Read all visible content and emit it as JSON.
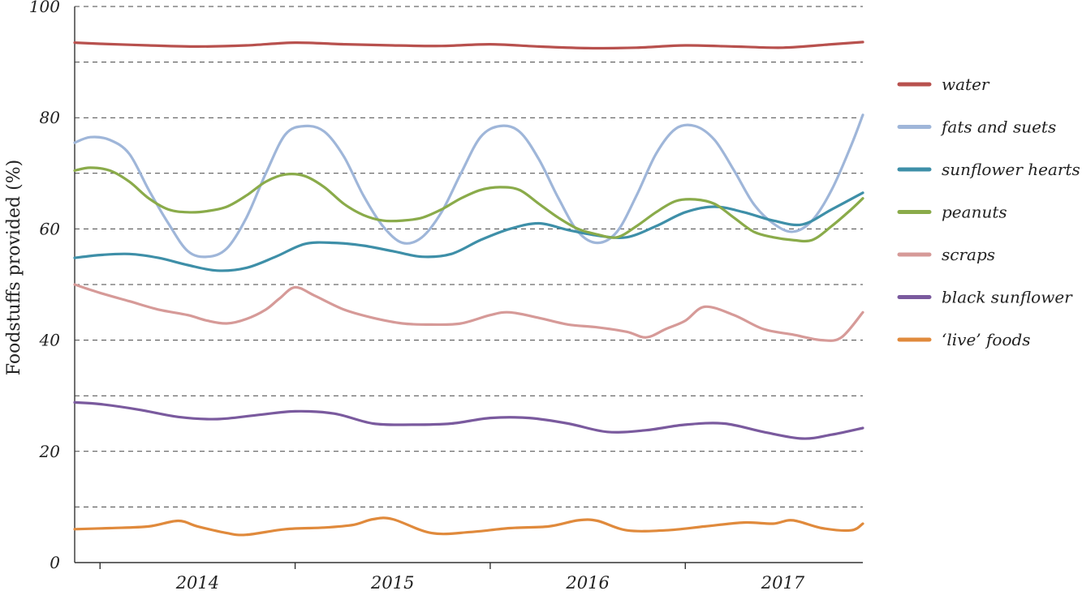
{
  "chart_data": {
    "type": "line",
    "ylabel": "Foodstuffs provided (%)",
    "xlabel": "",
    "ylim": [
      0,
      100
    ],
    "xlim": [
      2013.37,
      2017.41
    ],
    "y_ticks": [
      0,
      20,
      40,
      60,
      80,
      100
    ],
    "y_gridlines": [
      10,
      20,
      30,
      40,
      50,
      60,
      70,
      80,
      90,
      100
    ],
    "x_ticks": [
      {
        "label": "2014",
        "value": 2014.0
      },
      {
        "label": "2015",
        "value": 2015.0
      },
      {
        "label": "2016",
        "value": 2016.0
      },
      {
        "label": "2017",
        "value": 2017.0
      }
    ],
    "x_year_boundaries": [
      2013.5,
      2014.5,
      2015.5,
      2016.5,
      2017.5
    ],
    "grid": true,
    "legend_position": "right",
    "series": [
      {
        "name": "water",
        "color": "#b8514e",
        "x": [
          2013.37,
          2013.5,
          2013.75,
          2014.0,
          2014.25,
          2014.5,
          2014.75,
          2015.0,
          2015.25,
          2015.5,
          2015.75,
          2016.0,
          2016.25,
          2016.5,
          2016.75,
          2017.0,
          2017.25,
          2017.41
        ],
        "y": [
          93.5,
          93.3,
          93.0,
          92.8,
          93.0,
          93.5,
          93.2,
          93.0,
          92.9,
          93.2,
          92.8,
          92.5,
          92.6,
          93.0,
          92.8,
          92.6,
          93.2,
          93.6
        ]
      },
      {
        "name": "fats and suets",
        "color": "#9fb6d9",
        "x": [
          2013.37,
          2013.45,
          2013.55,
          2013.65,
          2013.75,
          2013.85,
          2013.95,
          2014.05,
          2014.15,
          2014.25,
          2014.35,
          2014.45,
          2014.55,
          2014.65,
          2014.75,
          2014.85,
          2014.95,
          2015.05,
          2015.15,
          2015.25,
          2015.35,
          2015.45,
          2015.55,
          2015.65,
          2015.75,
          2015.85,
          2015.95,
          2016.05,
          2016.15,
          2016.25,
          2016.35,
          2016.45,
          2016.55,
          2016.65,
          2016.75,
          2016.85,
          2016.95,
          2017.05,
          2017.15,
          2017.25,
          2017.35,
          2017.41
        ],
        "y": [
          75.5,
          76.5,
          76.0,
          73.5,
          67.0,
          61.0,
          56.0,
          55.0,
          56.5,
          62.0,
          70.0,
          77.0,
          78.5,
          77.5,
          73.0,
          66.0,
          60.5,
          57.5,
          58.5,
          63.0,
          70.0,
          76.5,
          78.5,
          77.5,
          72.5,
          65.5,
          59.5,
          57.5,
          59.5,
          66.0,
          73.5,
          78.0,
          78.5,
          76.0,
          70.5,
          64.5,
          61.0,
          59.5,
          61.5,
          67.0,
          75.0,
          80.5
        ]
      },
      {
        "name": "sunflower hearts",
        "color": "#3e8fa8",
        "x": [
          2013.37,
          2013.5,
          2013.65,
          2013.8,
          2013.95,
          2014.1,
          2014.25,
          2014.4,
          2014.55,
          2014.7,
          2014.85,
          2015.0,
          2015.15,
          2015.3,
          2015.45,
          2015.6,
          2015.75,
          2015.9,
          2016.05,
          2016.2,
          2016.35,
          2016.5,
          2016.65,
          2016.8,
          2016.95,
          2017.1,
          2017.25,
          2017.41
        ],
        "y": [
          54.8,
          55.3,
          55.5,
          54.8,
          53.5,
          52.5,
          53.0,
          55.0,
          57.3,
          57.5,
          57.0,
          56.0,
          55.0,
          55.5,
          58.0,
          60.0,
          61.0,
          59.8,
          58.8,
          58.5,
          60.5,
          63.0,
          64.0,
          63.0,
          61.5,
          60.8,
          63.5,
          66.5
        ]
      },
      {
        "name": "peanuts",
        "color": "#8aab4a",
        "x": [
          2013.37,
          2013.45,
          2013.55,
          2013.65,
          2013.75,
          2013.85,
          2013.95,
          2014.05,
          2014.15,
          2014.25,
          2014.35,
          2014.45,
          2014.55,
          2014.65,
          2014.75,
          2014.85,
          2014.95,
          2015.05,
          2015.15,
          2015.25,
          2015.35,
          2015.45,
          2015.55,
          2015.65,
          2015.75,
          2015.85,
          2015.95,
          2016.05,
          2016.15,
          2016.25,
          2016.35,
          2016.45,
          2016.55,
          2016.65,
          2016.75,
          2016.85,
          2016.95,
          2017.05,
          2017.15,
          2017.25,
          2017.35,
          2017.41
        ],
        "y": [
          70.5,
          71.0,
          70.5,
          68.5,
          65.5,
          63.5,
          63.0,
          63.2,
          64.0,
          66.0,
          68.5,
          69.8,
          69.5,
          67.5,
          64.5,
          62.5,
          61.5,
          61.5,
          62.0,
          63.5,
          65.5,
          67.0,
          67.5,
          67.0,
          64.5,
          62.0,
          60.0,
          59.0,
          58.5,
          60.5,
          63.0,
          65.0,
          65.3,
          64.5,
          62.0,
          59.5,
          58.5,
          58.0,
          58.0,
          60.5,
          63.5,
          65.5
        ]
      },
      {
        "name": "scraps",
        "color": "#d69a98",
        "x": [
          2013.37,
          2013.5,
          2013.65,
          2013.8,
          2013.95,
          2014.05,
          2014.15,
          2014.25,
          2014.35,
          2014.42,
          2014.5,
          2014.6,
          2014.75,
          2014.9,
          2015.05,
          2015.2,
          2015.35,
          2015.5,
          2015.6,
          2015.75,
          2015.9,
          2016.05,
          2016.2,
          2016.3,
          2016.4,
          2016.5,
          2016.6,
          2016.75,
          2016.9,
          2017.05,
          2017.2,
          2017.3,
          2017.41
        ],
        "y": [
          50.0,
          48.5,
          47.0,
          45.5,
          44.5,
          43.5,
          43.0,
          43.8,
          45.5,
          47.5,
          49.5,
          48.0,
          45.5,
          44.0,
          43.0,
          42.8,
          43.0,
          44.5,
          45.0,
          44.0,
          42.8,
          42.3,
          41.5,
          40.5,
          42.0,
          43.5,
          46.0,
          44.5,
          42.0,
          41.0,
          40.0,
          40.5,
          45.0
        ]
      },
      {
        "name": "black sunflower",
        "color": "#7a5a9e",
        "x": [
          2013.37,
          2013.5,
          2013.7,
          2013.9,
          2014.1,
          2014.3,
          2014.5,
          2014.7,
          2014.9,
          2015.1,
          2015.3,
          2015.5,
          2015.7,
          2015.9,
          2016.1,
          2016.3,
          2016.5,
          2016.7,
          2016.9,
          2017.1,
          2017.25,
          2017.41
        ],
        "y": [
          28.8,
          28.5,
          27.5,
          26.2,
          25.8,
          26.5,
          27.2,
          26.8,
          25.0,
          24.8,
          25.0,
          26.0,
          26.0,
          25.0,
          23.5,
          23.8,
          24.8,
          25.0,
          23.5,
          22.3,
          23.0,
          24.2
        ]
      },
      {
        "name": "‘live’ foods",
        "color": "#e08a3c",
        "x": [
          2013.37,
          2013.55,
          2013.75,
          2013.9,
          2014.0,
          2014.15,
          2014.25,
          2014.45,
          2014.65,
          2014.8,
          2014.9,
          2015.0,
          2015.2,
          2015.4,
          2015.6,
          2015.8,
          2015.95,
          2016.05,
          2016.2,
          2016.4,
          2016.6,
          2016.8,
          2016.95,
          2017.05,
          2017.2,
          2017.35,
          2017.41
        ],
        "y": [
          6.0,
          6.2,
          6.5,
          7.5,
          6.5,
          5.3,
          5.0,
          6.0,
          6.3,
          6.8,
          7.8,
          7.8,
          5.3,
          5.5,
          6.2,
          6.5,
          7.6,
          7.5,
          5.8,
          5.8,
          6.5,
          7.2,
          7.0,
          7.6,
          6.2,
          5.8,
          7.0
        ]
      }
    ]
  }
}
